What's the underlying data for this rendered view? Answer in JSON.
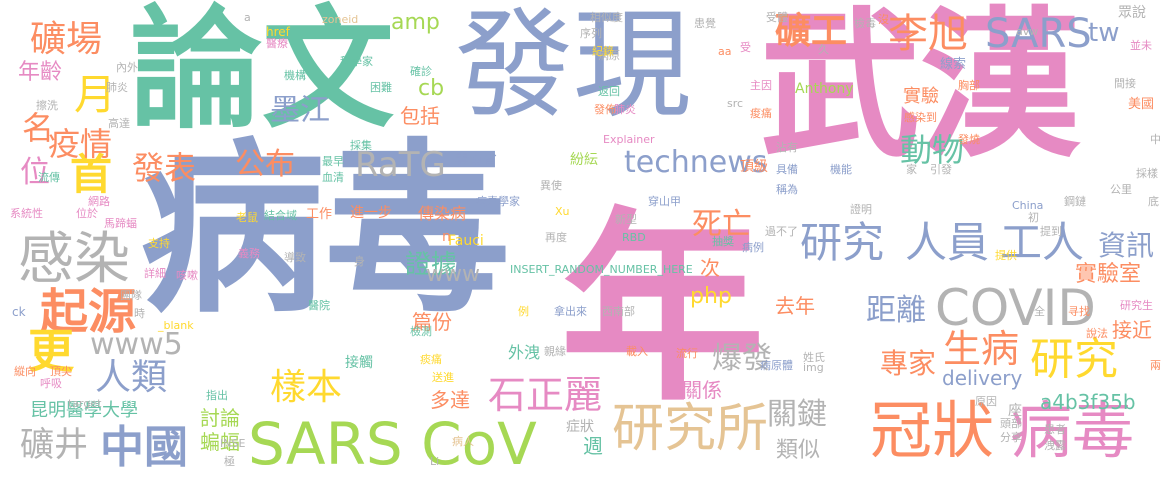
{
  "palette": {
    "blue": "#8c9fcb",
    "pink": "#e68ac3",
    "green": "#66c2a5",
    "orange": "#fc8d62",
    "lime": "#a6d854",
    "yellow": "#ffd92f",
    "tan": "#e5c494",
    "gray": "#b3b3b3"
  },
  "words": [
    {
      "text": "病毒",
      "color": "blue"
    },
    {
      "text": "年",
      "color": "pink"
    },
    {
      "text": "武漢",
      "color": "pink"
    },
    {
      "text": "發現",
      "color": "blue"
    },
    {
      "text": "論文",
      "color": "green"
    },
    {
      "text": "冠狀",
      "color": "orange"
    },
    {
      "text": "病毒",
      "color": "pink"
    },
    {
      "text": "SARS CoV",
      "color": "lime"
    },
    {
      "text": "研究所",
      "color": "tan"
    },
    {
      "text": "COVID",
      "color": "gray"
    },
    {
      "text": "感染",
      "color": "gray"
    },
    {
      "text": "起源",
      "color": "orange"
    },
    {
      "text": "研究",
      "color": "blue"
    },
    {
      "text": "人員",
      "color": "blue"
    },
    {
      "text": "工人",
      "color": "blue"
    },
    {
      "text": "中國",
      "color": "blue"
    },
    {
      "text": "研究",
      "color": "yellow"
    },
    {
      "text": "李旭",
      "color": "orange"
    },
    {
      "text": "SARS",
      "color": "blue"
    },
    {
      "text": "礦工",
      "color": "orange"
    },
    {
      "text": "礦場",
      "color": "orange"
    },
    {
      "text": "首",
      "color": "yellow"
    },
    {
      "text": "月",
      "color": "yellow"
    },
    {
      "text": "更",
      "color": "yellow"
    },
    {
      "text": "疫情",
      "color": "orange"
    },
    {
      "text": "名",
      "color": "orange"
    },
    {
      "text": "位",
      "color": "pink"
    },
    {
      "text": "年齡",
      "color": "pink"
    },
    {
      "text": "發表",
      "color": "orange"
    },
    {
      "text": "RaTG",
      "color": "gray"
    },
    {
      "text": "公布",
      "color": "orange"
    },
    {
      "text": "墨江",
      "color": "blue"
    },
    {
      "text": "technews",
      "color": "blue"
    },
    {
      "text": "動物",
      "color": "green"
    },
    {
      "text": "人類",
      "color": "blue"
    },
    {
      "text": "www5",
      "color": "gray"
    },
    {
      "text": "樣本",
      "color": "yellow"
    },
    {
      "text": "石正麗",
      "color": "pink"
    },
    {
      "text": "生病",
      "color": "orange"
    },
    {
      "text": "專家",
      "color": "orange"
    },
    {
      "text": "資訊",
      "color": "blue"
    },
    {
      "text": "實驗室",
      "color": "orange"
    },
    {
      "text": "死亡",
      "color": "orange"
    },
    {
      "text": "距離",
      "color": "blue"
    },
    {
      "text": "關鍵",
      "color": "gray"
    },
    {
      "text": "類似",
      "color": "gray"
    },
    {
      "text": "爆發",
      "color": "gray"
    },
    {
      "text": "礦井",
      "color": "gray"
    },
    {
      "text": "昆明醫學大學",
      "color": "green"
    },
    {
      "text": "蝙蝠",
      "color": "lime"
    },
    {
      "text": "討論",
      "color": "lime"
    },
    {
      "text": "證據",
      "color": "green"
    },
    {
      "text": "篇份",
      "color": "orange"
    },
    {
      "text": "多達",
      "color": "orange"
    },
    {
      "text": "關係",
      "color": "pink"
    },
    {
      "text": "去年",
      "color": "orange"
    },
    {
      "text": "delivery",
      "color": "blue"
    },
    {
      "text": "a4b3f35b",
      "color": "green"
    },
    {
      "text": "接近",
      "color": "orange"
    },
    {
      "text": "www",
      "color": "gray"
    },
    {
      "text": "php",
      "color": "yellow"
    },
    {
      "text": "amp",
      "color": "lime"
    },
    {
      "text": "cb",
      "color": "lime"
    },
    {
      "text": "包括",
      "color": "orange"
    },
    {
      "text": "tw",
      "color": "blue"
    },
    {
      "text": "實驗",
      "color": "orange"
    },
    {
      "text": "雲南省",
      "color": "blue"
    },
    {
      "text": "紛紜",
      "color": "lime"
    },
    {
      "text": "次",
      "color": "orange"
    },
    {
      "text": "頂級",
      "color": "orange"
    },
    {
      "text": "傳染病",
      "color": "orange"
    },
    {
      "text": "進一步",
      "color": "orange"
    },
    {
      "text": "工作",
      "color": "orange"
    },
    {
      "text": "病毒學家",
      "color": "blue"
    },
    {
      "text": "Anthony",
      "color": "lime"
    },
    {
      "text": "美國",
      "color": "orange"
    },
    {
      "text": "Fauci",
      "color": "yellow"
    },
    {
      "text": "INSERT_RANDOM_NUMBER_HERE",
      "color": "green"
    },
    {
      "text": "外洩",
      "color": "green"
    },
    {
      "text": "接觸",
      "color": "green"
    },
    {
      "text": "症狀",
      "color": "gray"
    },
    {
      "text": "週",
      "color": "green"
    },
    {
      "text": "Explainer",
      "color": "pink"
    },
    {
      "text": "線索",
      "color": "blue"
    },
    {
      "text": "眾說",
      "color": "gray"
    },
    {
      "text": "Xu",
      "color": "yellow"
    },
    {
      "text": "RBD",
      "color": "green"
    },
    {
      "text": "穿山甲",
      "color": "blue"
    },
    {
      "text": "href",
      "color": "yellow"
    },
    {
      "text": "zoneid",
      "color": "tan"
    },
    {
      "text": "結合域",
      "color": "green"
    },
    {
      "text": "馬蹄蝠",
      "color": "pink"
    },
    {
      "text": "流傳",
      "color": "green"
    },
    {
      "text": "位於",
      "color": "pink"
    },
    {
      "text": "系統性",
      "color": "pink"
    },
    {
      "text": "網路",
      "color": "pink"
    },
    {
      "text": "高達",
      "color": "gray"
    },
    {
      "text": "科學家",
      "color": "green"
    },
    {
      "text": "機構",
      "color": "green"
    },
    {
      "text": "確診",
      "color": "green"
    },
    {
      "text": "困難",
      "color": "green"
    },
    {
      "text": "主因",
      "color": "pink"
    },
    {
      "text": "胸部",
      "color": "orange"
    },
    {
      "text": "感染到",
      "color": "orange"
    },
    {
      "text": "發燒",
      "color": "orange"
    },
    {
      "text": "機能",
      "color": "blue"
    },
    {
      "text": "具備",
      "color": "blue"
    },
    {
      "text": "稱為",
      "color": "blue"
    },
    {
      "text": "提供",
      "color": "yellow"
    },
    {
      "text": "病例",
      "color": "blue"
    },
    {
      "text": "新型",
      "color": "gray"
    },
    {
      "text": "過不了",
      "color": "gray"
    },
    {
      "text": "痠痛",
      "color": "orange"
    },
    {
      "text": "研究生",
      "color": "pink"
    },
    {
      "text": "China",
      "color": "blue"
    },
    {
      "text": "寻找",
      "color": "orange"
    },
    {
      "text": "說法",
      "color": "orange"
    },
    {
      "text": "姓氏",
      "color": "gray"
    },
    {
      "text": "原因",
      "color": "gray"
    },
    {
      "text": "頭部",
      "color": "gray"
    },
    {
      "text": "分享",
      "color": "gray"
    },
    {
      "text": "座",
      "color": "gray"
    },
    {
      "text": "患者",
      "color": "gray"
    },
    {
      "text": "洩露",
      "color": "gray"
    },
    {
      "text": "病原體",
      "color": "blue"
    },
    {
      "text": "流行",
      "color": "orange"
    },
    {
      "text": "載入",
      "color": "orange"
    },
    {
      "text": "拿出來",
      "color": "blue"
    },
    {
      "text": "西南部",
      "color": "gray"
    },
    {
      "text": "親緣",
      "color": "gray"
    },
    {
      "text": "痰痛",
      "color": "yellow"
    },
    {
      "text": "送進",
      "color": "yellow"
    },
    {
      "text": "病人",
      "color": "tan"
    },
    {
      "text": "例",
      "color": "yellow"
    },
    {
      "text": "醫院",
      "color": "green"
    },
    {
      "text": "檢測",
      "color": "green"
    },
    {
      "text": "團隊",
      "color": "gray"
    },
    {
      "text": "詳細",
      "color": "pink"
    },
    {
      "text": "咳嗽",
      "color": "pink"
    },
    {
      "text": "支持",
      "color": "yellow"
    },
    {
      "text": "指出",
      "color": "green"
    },
    {
      "text": "_blank",
      "color": "yellow"
    },
    {
      "text": "ck",
      "color": "blue"
    },
    {
      "text": "頂尖",
      "color": "orange"
    },
    {
      "text": "縱向",
      "color": "orange"
    },
    {
      "text": "呼吸",
      "color": "pink"
    },
    {
      "text": "target",
      "color": "gray"
    },
    {
      "text": "avw",
      "color": "gray"
    },
    {
      "text": "全",
      "color": "gray"
    },
    {
      "text": "初",
      "color": "gray"
    },
    {
      "text": "底",
      "color": "gray"
    },
    {
      "text": "鋼鏈",
      "color": "gray"
    },
    {
      "text": "證明",
      "color": "gray"
    },
    {
      "text": "src",
      "color": "gray"
    },
    {
      "text": "img",
      "color": "gray"
    },
    {
      "text": "Li",
      "color": "gray"
    },
    {
      "text": "極",
      "color": "gray"
    },
    {
      "text": "INSE",
      "color": "gray"
    },
    {
      "text": "身",
      "color": "gray"
    },
    {
      "text": "導致",
      "color": "gray"
    },
    {
      "text": "義務",
      "color": "pink"
    },
    {
      "text": "老鼠",
      "color": "yellow"
    },
    {
      "text": "抽獎",
      "color": "green"
    },
    {
      "text": "再度",
      "color": "gray"
    },
    {
      "text": "n",
      "color": "orange"
    },
    {
      "text": "aa",
      "color": "orange"
    },
    {
      "text": "患覺",
      "color": "gray"
    },
    {
      "text": "病原",
      "color": "gray"
    },
    {
      "text": "相似度",
      "color": "gray"
    },
    {
      "text": "序列",
      "color": "gray"
    },
    {
      "text": "紀錄",
      "color": "yellow"
    },
    {
      "text": "返回",
      "color": "green"
    },
    {
      "text": "肺炎",
      "color": "pink"
    },
    {
      "text": "受體",
      "color": "gray"
    },
    {
      "text": "受",
      "color": "pink"
    },
    {
      "text": "久",
      "color": "gray"
    },
    {
      "text": "間接",
      "color": "gray"
    },
    {
      "text": "並未",
      "color": "pink"
    },
    {
      "text": "沾有",
      "color": "gray"
    },
    {
      "text": "引發",
      "color": "gray"
    },
    {
      "text": "中",
      "color": "gray"
    },
    {
      "text": "兩",
      "color": "orange"
    },
    {
      "text": "家",
      "color": "gray"
    },
    {
      "text": "公里",
      "color": "gray"
    },
    {
      "text": "採樣",
      "color": "gray"
    },
    {
      "text": "提到",
      "color": "gray"
    },
    {
      "text": "血清",
      "color": "green"
    },
    {
      "text": "最早",
      "color": "green"
    },
    {
      "text": "採集",
      "color": "green"
    },
    {
      "text": "發佈",
      "color": "orange"
    },
    {
      "text": "a",
      "color": "gray"
    },
    {
      "text": "醫療",
      "color": "pink"
    },
    {
      "text": "時",
      "color": "gray"
    },
    {
      "text": "內外",
      "color": "gray"
    },
    {
      "text": "肺炎",
      "color": "gray"
    },
    {
      "text": "擦洗",
      "color": "gray"
    },
    {
      "text": "異使",
      "color": "gray"
    },
    {
      "text": "美國",
      "color": "orange"
    },
    {
      "text": "檢毒",
      "color": "gray"
    },
    {
      "text": "沒",
      "color": "orange"
    }
  ]
}
